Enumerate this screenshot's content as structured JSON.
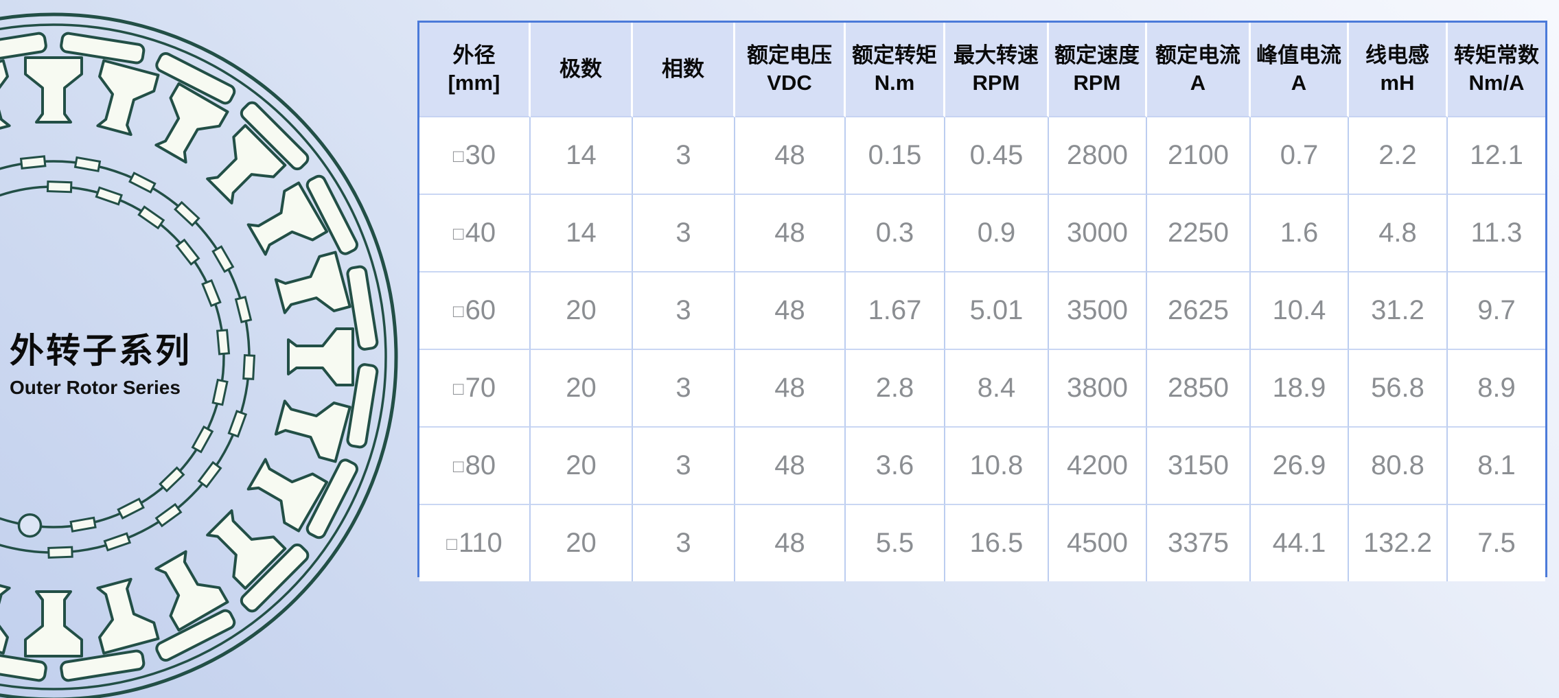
{
  "titles": {
    "cn": "外转子系列",
    "en": "Outer Rotor Series"
  },
  "illustration": {
    "name": "outer-rotor-stator-cross-section",
    "line_color": "#224f46",
    "fill_color": "#f7faf2"
  },
  "colors": {
    "background_light": "#f6f8fd",
    "background_dark": "#c2d0ed",
    "table_outer_border": "#4b7ad9",
    "header_bg": "#d6dff6",
    "header_text": "#0a0a0a",
    "cell_text": "#8b8e92",
    "cell_border": "#bccdf0"
  },
  "table": {
    "columns": [
      "外径\n[mm]",
      "极数",
      "相数",
      "额定电压\nVDC",
      "额定转矩\nN.m",
      "最大转速\nRPM",
      "额定速度\nRPM",
      "额定电流\nA",
      "峰值电流\nA",
      "线电感\nmH",
      "转矩常数\nNm/A"
    ],
    "rows": [
      [
        "□30",
        "14",
        "3",
        "48",
        "0.15",
        "0.45",
        "2800",
        "2100",
        "0.7",
        "2.2",
        "12.1"
      ],
      [
        "□40",
        "14",
        "3",
        "48",
        "0.3",
        "0.9",
        "3000",
        "2250",
        "1.6",
        "4.8",
        "11.3"
      ],
      [
        "□60",
        "20",
        "3",
        "48",
        "1.67",
        "5.01",
        "3500",
        "2625",
        "10.4",
        "31.2",
        "9.7"
      ],
      [
        "□70",
        "20",
        "3",
        "48",
        "2.8",
        "8.4",
        "3800",
        "2850",
        "18.9",
        "56.8",
        "8.9"
      ],
      [
        "□80",
        "20",
        "3",
        "48",
        "3.6",
        "10.8",
        "4200",
        "3150",
        "26.9",
        "80.8",
        "8.1"
      ],
      [
        "□110",
        "20",
        "3",
        "48",
        "5.5",
        "16.5",
        "4500",
        "3375",
        "44.1",
        "132.2",
        "7.5"
      ]
    ]
  }
}
